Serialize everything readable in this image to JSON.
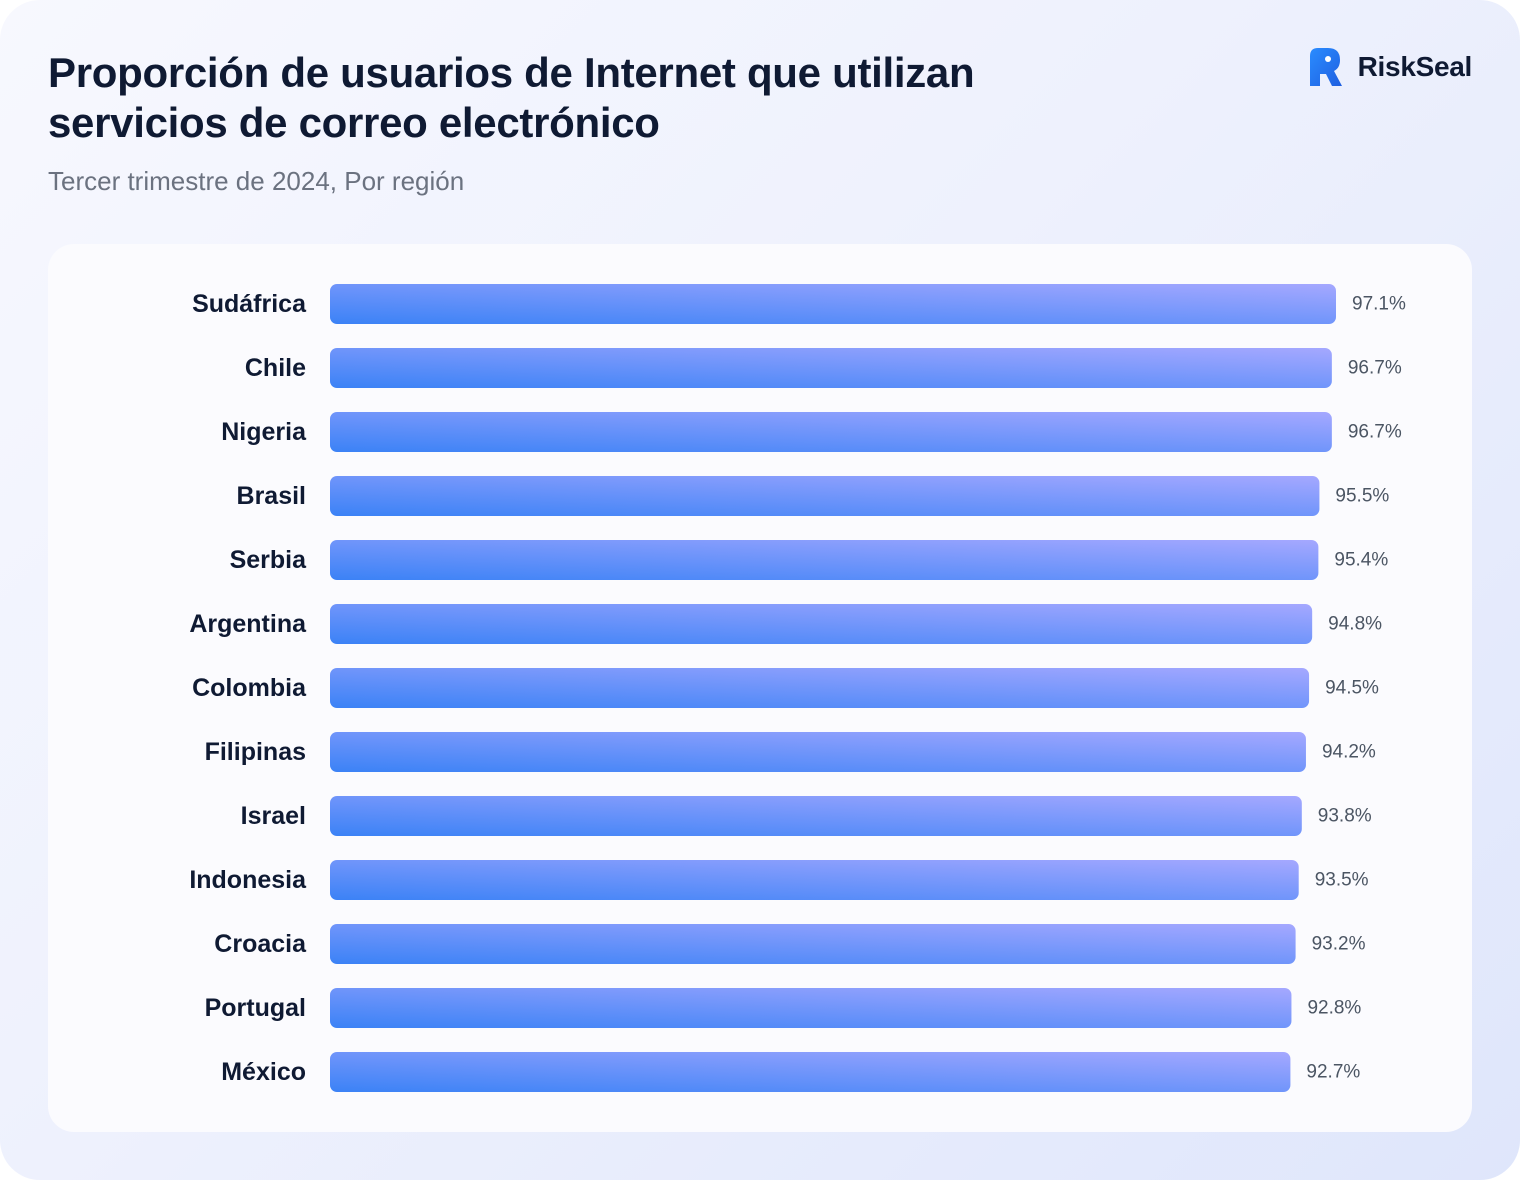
{
  "header": {
    "title": "Proporción de usuarios de Internet que utilizan servicios de correo electrónico",
    "subtitle": "Tercer trimestre de 2024, Por región"
  },
  "logo": {
    "text": "RiskSeal",
    "icon": "riskseal-logo-icon",
    "color": "#2f7cf6"
  },
  "chart_data": {
    "type": "bar",
    "orientation": "horizontal",
    "title": "Proporción de usuarios de Internet que utilizan servicios de correo electrónico",
    "subtitle": "Tercer trimestre de 2024, Por región",
    "xlabel": "",
    "ylabel": "",
    "xlim": [
      0,
      97.1
    ],
    "grid": false,
    "legend": "none",
    "categories": [
      "Sudáfrica",
      "Chile",
      "Nigeria",
      "Brasil",
      "Serbia",
      "Argentina",
      "Colombia",
      "Filipinas",
      "Israel",
      "Indonesia",
      "Croacia",
      "Portugal",
      "México"
    ],
    "values": [
      97.1,
      96.7,
      96.7,
      95.5,
      95.4,
      94.8,
      94.5,
      94.2,
      93.8,
      93.5,
      93.2,
      92.8,
      92.7
    ],
    "value_labels": [
      "97.1%",
      "96.7%",
      "96.7%",
      "95.5%",
      "95.4%",
      "94.8%",
      "94.5%",
      "94.2%",
      "93.8%",
      "93.5%",
      "93.2%",
      "92.8%",
      "92.7%"
    ],
    "bar_gradient": [
      "#3b82f6",
      "#a5a8ff"
    ]
  }
}
